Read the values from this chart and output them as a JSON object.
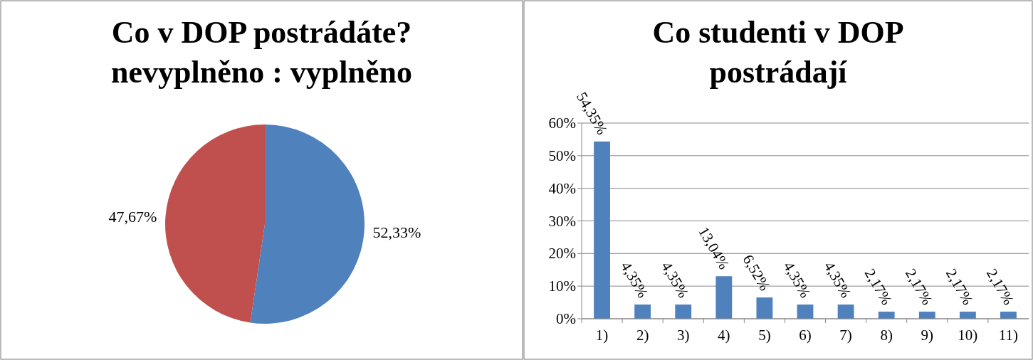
{
  "chart_data": [
    {
      "type": "pie",
      "title": "Co v DOP postrádáte?\nnevyplněno : vyplněno",
      "categories": [
        null,
        null
      ],
      "values": [
        52.33,
        47.67
      ],
      "colors": [
        "#4f81bd",
        "#c0504d"
      ],
      "value_labels": [
        "52,33%",
        "47,67%"
      ]
    },
    {
      "type": "bar",
      "title": "Co studenti v DOP\npostrádají",
      "categories": [
        "1)",
        "2)",
        "3)",
        "4)",
        "5)",
        "6)",
        "7)",
        "8)",
        "9)",
        "10)",
        "11)"
      ],
      "values": [
        54.35,
        4.35,
        4.35,
        13.04,
        6.52,
        4.35,
        4.35,
        2.17,
        2.17,
        2.17,
        2.17
      ],
      "color": "#4f81bd",
      "value_labels": [
        "54,35%",
        "4,35%",
        "4,35%",
        "13,04%",
        "6,52%",
        "4,35%",
        "4,35%",
        "2,17%",
        "2,17%",
        "2,17%",
        "2,17%"
      ],
      "ylim": [
        0,
        60
      ],
      "yticks": [
        {
          "value": 0,
          "label": "0%"
        },
        {
          "value": 10,
          "label": "10%"
        },
        {
          "value": 20,
          "label": "20%"
        },
        {
          "value": 30,
          "label": "30%"
        },
        {
          "value": 40,
          "label": "40%"
        },
        {
          "value": 50,
          "label": "50%"
        },
        {
          "value": 60,
          "label": "60%"
        }
      ],
      "grid": "y"
    }
  ]
}
